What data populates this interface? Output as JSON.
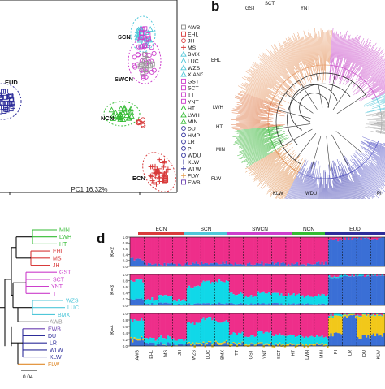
{
  "figure": {
    "panel_labels": {
      "b": "b",
      "d": "d"
    }
  },
  "pca": {
    "xlabel": "PC1 16.32%",
    "x_ticks": [
      "0",
      "0.05"
    ],
    "cluster_labels": [
      "SCN",
      "SWCN",
      "EUD",
      "NCN",
      "ECN"
    ],
    "legend": [
      "AWB",
      "EHL",
      "JH",
      "MS",
      "BMX",
      "LUC",
      "WZS",
      "XIANG",
      "GST",
      "SCT",
      "TT",
      "YNT",
      "HT",
      "LWH",
      "MIN",
      "DU",
      "HMP",
      "LR",
      "PI",
      "WDU",
      "KLW",
      "WLW",
      "FLW",
      "EWB"
    ],
    "legend_colors": [
      "#8a8a8a",
      "#d83a3a",
      "#d83a3a",
      "#d83a3a",
      "#4fc7d9",
      "#4fc7d9",
      "#4fc7d9",
      "#4fc7d9",
      "#cc3fcc",
      "#cc3fcc",
      "#cc3fcc",
      "#cc3fcc",
      "#33bb33",
      "#33bb33",
      "#33bb33",
      "#2d2d9a",
      "#2d2d9a",
      "#2d2d9a",
      "#2d2d9a",
      "#2d2d9a",
      "#2d2d9a",
      "#2d2d9a",
      "#e08a2a",
      "#6a3fb0"
    ]
  },
  "circ_tree": {
    "labels": [
      "GST",
      "SCT",
      "YNT",
      "EHL",
      "LWH",
      "HT",
      "MIN",
      "FLW",
      "KLW",
      "WDU",
      "PI"
    ]
  },
  "small_tree": {
    "taxa": [
      {
        "name": "MIN",
        "color": "#33bb33"
      },
      {
        "name": "LWH",
        "color": "#33bb33"
      },
      {
        "name": "HT",
        "color": "#33bb33"
      },
      {
        "name": "EHL",
        "color": "#d83a3a"
      },
      {
        "name": "MS",
        "color": "#d83a3a"
      },
      {
        "name": "JH",
        "color": "#d83a3a"
      },
      {
        "name": "GST",
        "color": "#cc3fcc"
      },
      {
        "name": "SCT",
        "color": "#cc3fcc"
      },
      {
        "name": "YNT",
        "color": "#cc3fcc"
      },
      {
        "name": "TT",
        "color": "#cc3fcc"
      },
      {
        "name": "WZS",
        "color": "#4fc7d9"
      },
      {
        "name": "LUC",
        "color": "#4fc7d9"
      },
      {
        "name": "BMX",
        "color": "#4fc7d9"
      },
      {
        "name": "AWB",
        "color": "#9a9a9a"
      },
      {
        "name": "EWB",
        "color": "#6a3fb0"
      },
      {
        "name": "DU",
        "color": "#2d2d9a"
      },
      {
        "name": "LR",
        "color": "#2d2d9a"
      },
      {
        "name": "WLW",
        "color": "#2d2d9a"
      },
      {
        "name": "KLW",
        "color": "#2d2d9a"
      },
      {
        "name": "FLW",
        "color": "#e08a2a"
      }
    ],
    "scale_label": "0.04"
  },
  "admixture": {
    "groups": [
      {
        "name": "ECN",
        "color": "#d83a3a"
      },
      {
        "name": "SCN",
        "color": "#4fc7d9"
      },
      {
        "name": "SWCN",
        "color": "#cc3fcc"
      },
      {
        "name": "NCN",
        "color": "#33bb33"
      },
      {
        "name": "EUD",
        "color": "#2d2d9a"
      }
    ],
    "k_labels": [
      "K=2",
      "K=3",
      "K=4"
    ],
    "y_ticks": [
      "1.0",
      "0.8",
      "0.6",
      "0.4",
      "0.2",
      "0.0"
    ],
    "populations": [
      "AWB",
      "EHL",
      "MS",
      "JH",
      "WZS",
      "LUC",
      "BMX",
      "TT",
      "GST",
      "YNT",
      "SCT",
      "HT",
      "LWH",
      "MIN",
      "PI",
      "LR",
      "DU",
      "KLW"
    ],
    "colors": {
      "pink": "#ee2e8a",
      "blue": "#3a6fd6",
      "cyan": "#10d8e8",
      "yellow": "#f2c81a"
    }
  }
}
